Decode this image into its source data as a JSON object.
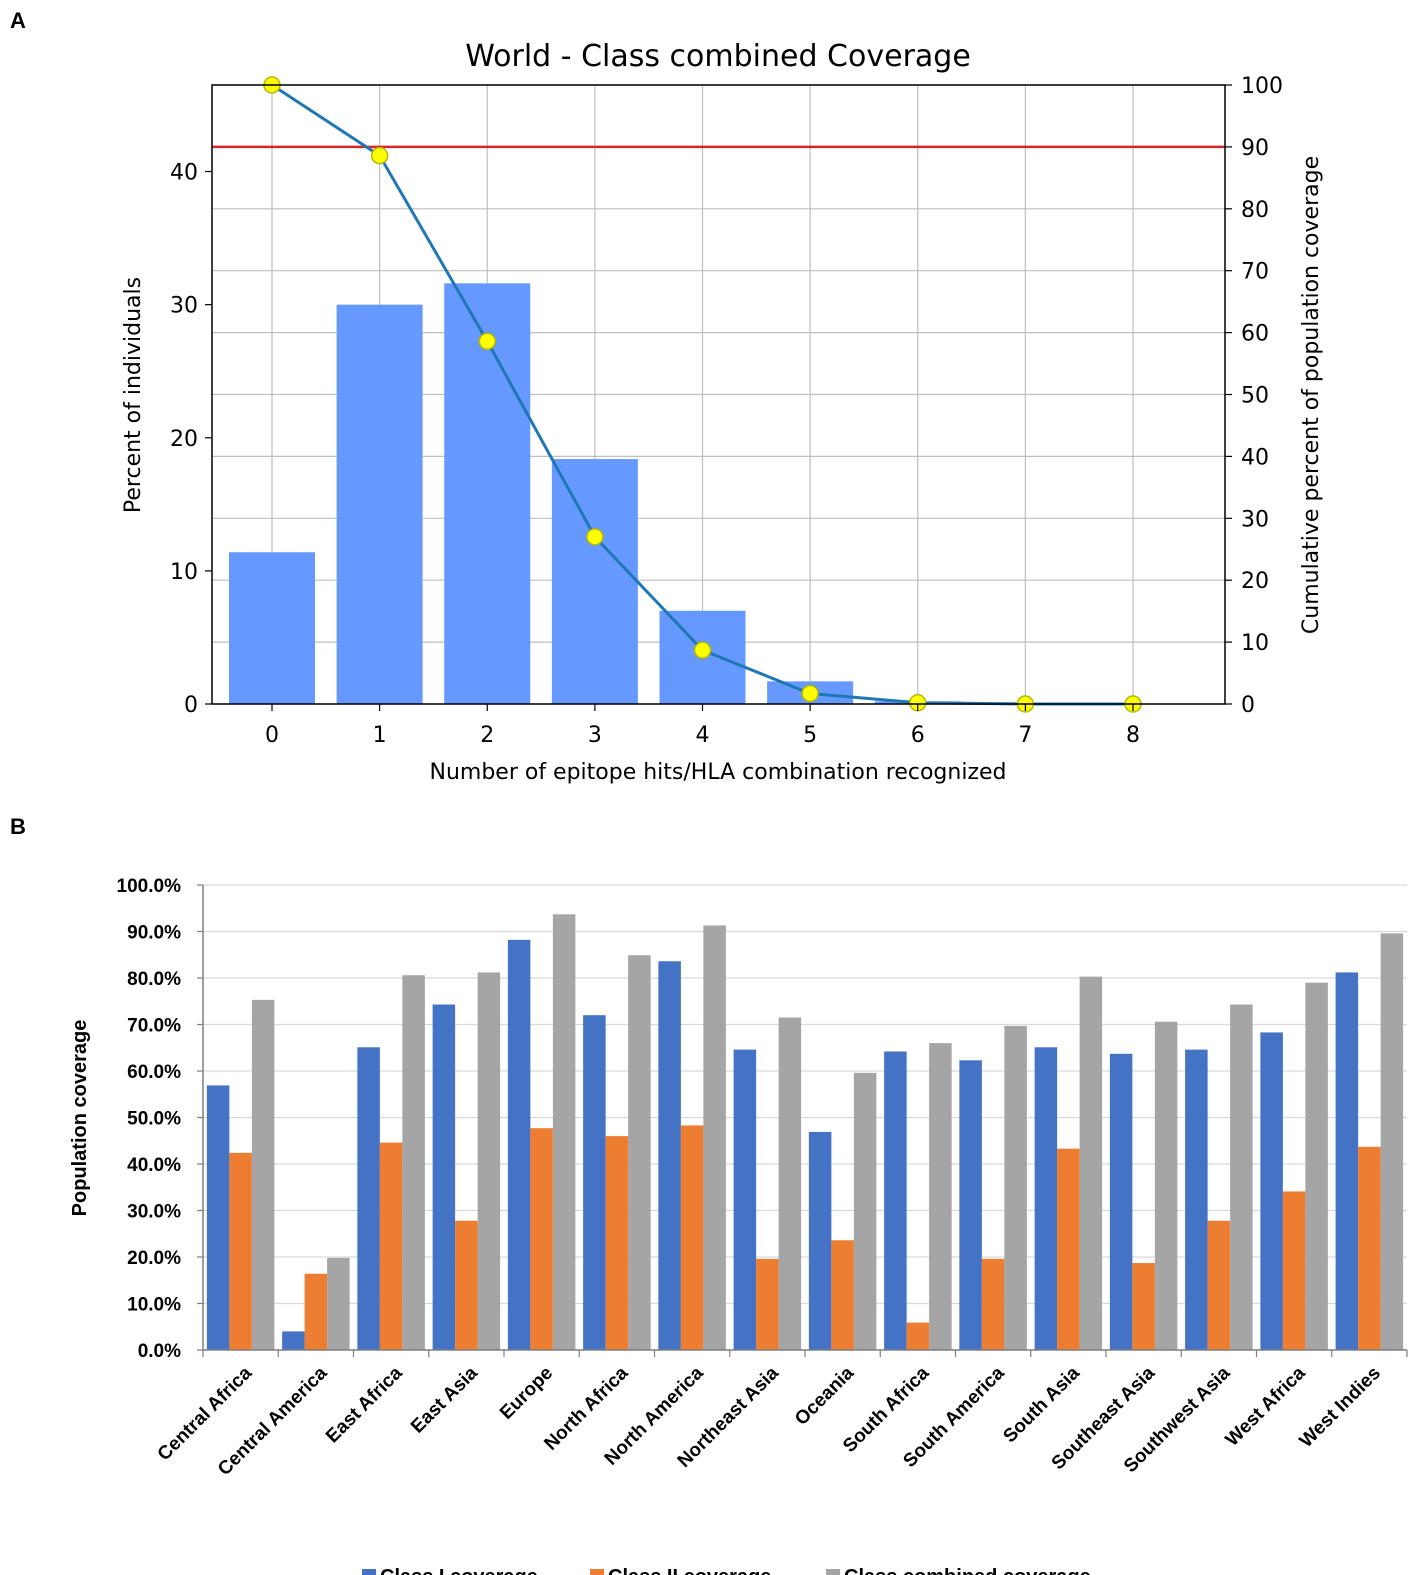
{
  "panel_labels": {
    "a": "A",
    "b": "B"
  },
  "colors": {
    "bar_a": "#6699ff",
    "line_a": "#1f77b4",
    "marker_fill": "#ffff00",
    "marker_edge": "#b5b800",
    "threshold": "#d62728",
    "class1": "#4472c4",
    "class2": "#ed7d31",
    "combined": "#a5a5a5",
    "grid": "#bfbfbf"
  },
  "chart_data": [
    {
      "type": "bar",
      "title": "World - Class combined Coverage",
      "xlabel": "Number of epitope hits/HLA combination recognized",
      "ylabel": "Percent of individuals",
      "y2label": "Cumulative percent of population coverage",
      "categories": [
        "0",
        "1",
        "2",
        "3",
        "4",
        "5",
        "6",
        "7",
        "8"
      ],
      "values": [
        11.4,
        30.0,
        31.6,
        18.4,
        7.0,
        1.7,
        0.2,
        0.0,
        0.0
      ],
      "yticks": [
        "0",
        "10",
        "20",
        "30",
        "40"
      ],
      "ylim": [
        0,
        46.5
      ],
      "line": {
        "name": "Cumulative percent of population coverage",
        "values": [
          100,
          88.6,
          58.6,
          27.0,
          8.7,
          1.7,
          0.2,
          0.0,
          0.0
        ]
      },
      "y2ticks": [
        "0",
        "10",
        "20",
        "30",
        "40",
        "50",
        "60",
        "70",
        "80",
        "90",
        "100"
      ],
      "y2lim": [
        0,
        100
      ],
      "threshold": 90,
      "grid": true
    },
    {
      "type": "bar",
      "title": "",
      "xlabel": "",
      "ylabel": "Population coverage",
      "categories": [
        "Central Africa",
        "Central America",
        "East Africa",
        "East Asia",
        "Europe",
        "North Africa",
        "North America",
        "Northeast Asia",
        "Oceania",
        "South Africa",
        "South America",
        "South Asia",
        "Southeast Asia",
        "Southwest Asia",
        "West Africa",
        "West Indies"
      ],
      "series": [
        {
          "name": "Class I coverage",
          "values": [
            56.9,
            4.0,
            65.1,
            74.3,
            88.2,
            72.0,
            83.6,
            64.6,
            46.9,
            64.2,
            62.3,
            65.1,
            63.7,
            64.6,
            68.3,
            81.2
          ]
        },
        {
          "name": "Class II coverage",
          "values": [
            42.4,
            16.4,
            44.6,
            27.8,
            47.7,
            46.0,
            48.3,
            19.6,
            23.6,
            5.9,
            19.6,
            43.3,
            18.7,
            27.8,
            34.1,
            43.7
          ]
        },
        {
          "name": "Class combined coverage",
          "values": [
            75.3,
            19.8,
            80.6,
            81.2,
            93.7,
            84.9,
            91.3,
            71.5,
            59.6,
            66.0,
            69.7,
            80.3,
            70.6,
            74.3,
            79.0,
            89.6
          ]
        }
      ],
      "yticks": [
        "0.0%",
        "10.0%",
        "20.0%",
        "30.0%",
        "40.0%",
        "50.0%",
        "60.0%",
        "70.0%",
        "80.0%",
        "90.0%",
        "100.0%"
      ],
      "ylim": [
        0,
        100
      ],
      "legend_position": "bottom",
      "grid": true
    }
  ]
}
